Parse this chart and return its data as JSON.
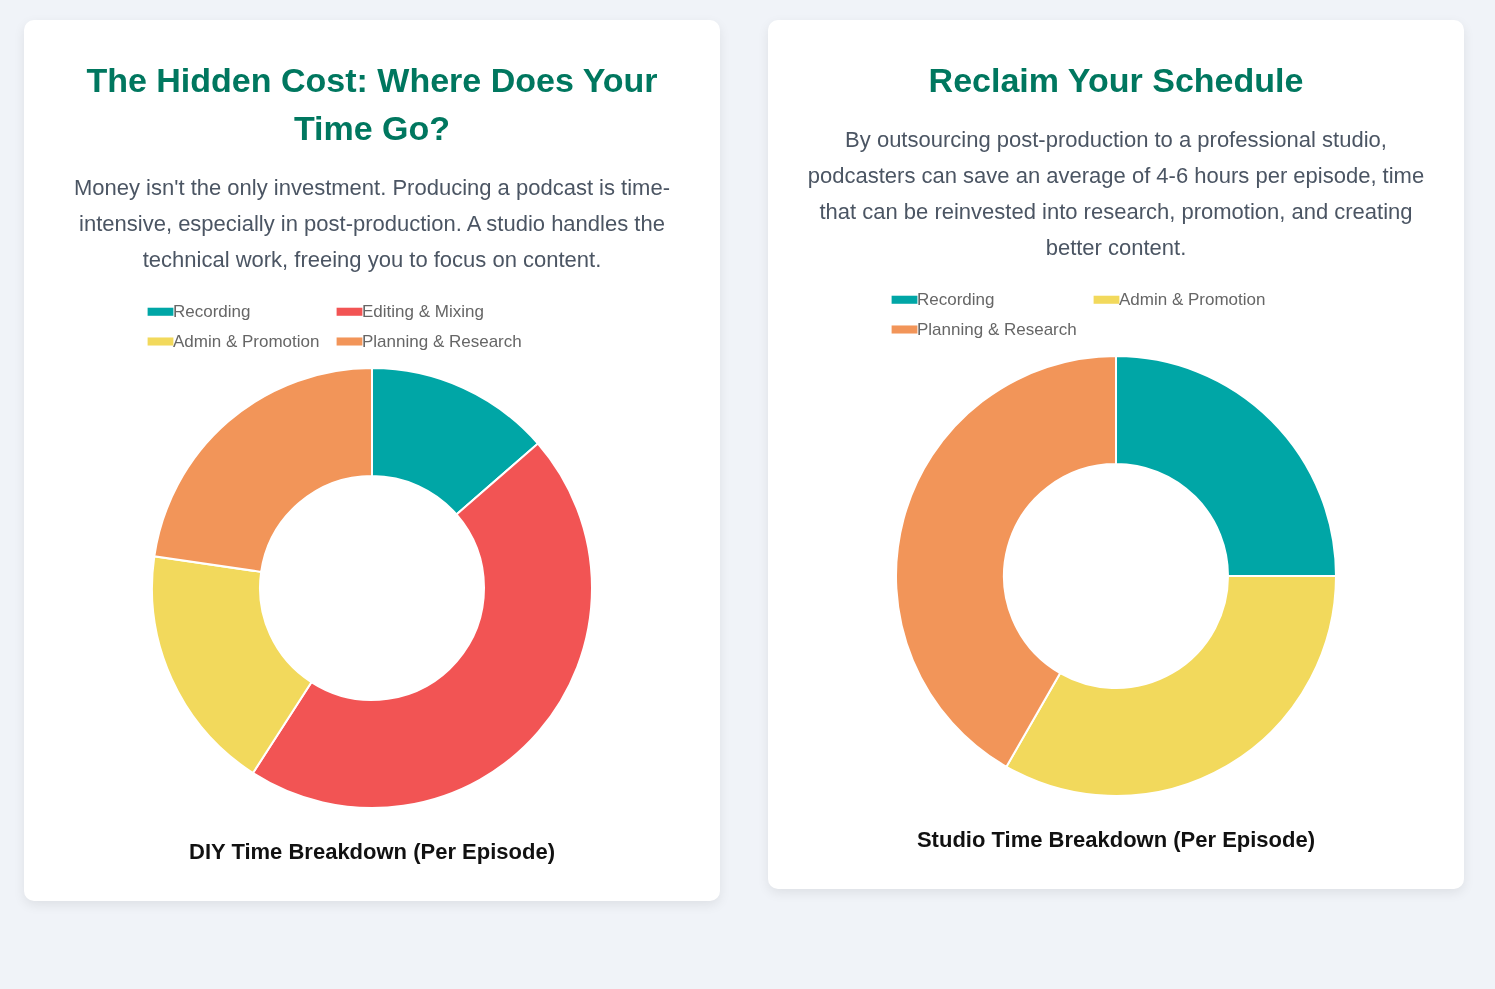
{
  "chart_data": [
    {
      "type": "donut",
      "title": "The Hidden Cost: Where Does Your Time Go?",
      "subtitle": "Money isn't the only investment. Producing a podcast is time-intensive, especially in post-production. A studio handles the technical work, freeing you to focus on content.",
      "categories": [
        "Recording",
        "Editing & Mixing",
        "Admin & Promotion",
        "Planning & Research"
      ],
      "values": [
        13.6,
        45.5,
        18.2,
        22.7
      ],
      "colors": [
        "#00a6a6",
        "#f25454",
        "#f2d95c",
        "#f29559"
      ],
      "legend": "top",
      "annotations": [
        "DIY Time Breakdown (Per Episode)"
      ]
    },
    {
      "type": "donut",
      "title": "Reclaim Your Schedule",
      "subtitle": "By outsourcing post-production to a professional studio, podcasters can save an average of 4-6 hours per episode, time that can be reinvested into research, promotion, and creating better content.",
      "categories": [
        "Recording",
        "Admin & Promotion",
        "Planning & Research"
      ],
      "values": [
        25,
        33.3,
        41.7
      ],
      "colors": [
        "#00a6a6",
        "#f2d95c",
        "#f29559"
      ],
      "legend": "top",
      "annotations": [
        "Studio Time Breakdown (Per Episode)"
      ]
    }
  ]
}
